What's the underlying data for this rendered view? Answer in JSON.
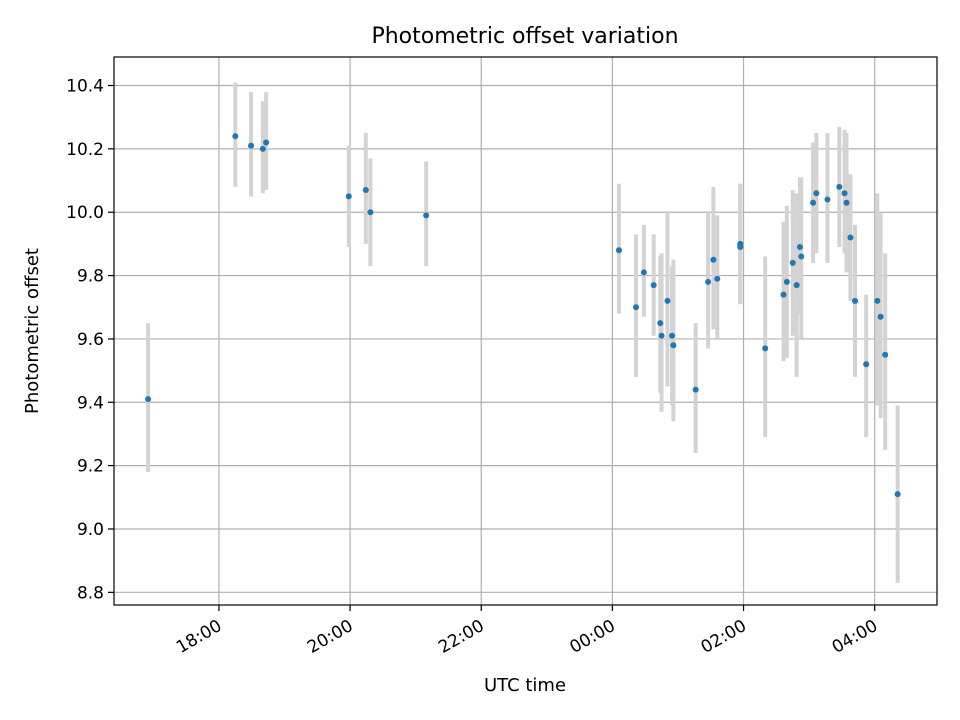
{
  "chart_data": {
    "type": "scatter",
    "title": "Photometric offset variation",
    "xlabel": "UTC time",
    "ylabel": "Photometric offset",
    "x_unit": "hours (UTC, relative to 00:00 of second day)",
    "xlim": [
      -7.6,
      4.95
    ],
    "ylim": [
      8.76,
      10.49
    ],
    "grid": true,
    "legend": "none",
    "colors": {
      "point": "#1f77b4",
      "errorbar": "#d3d3d3",
      "grid": "#b0b0b0"
    },
    "x_ticks": [
      {
        "value": -6,
        "label": "18:00"
      },
      {
        "value": -4,
        "label": "20:00"
      },
      {
        "value": -2,
        "label": "22:00"
      },
      {
        "value": 0,
        "label": "00:00"
      },
      {
        "value": 2,
        "label": "02:00"
      },
      {
        "value": 4,
        "label": "04:00"
      }
    ],
    "y_ticks": [
      {
        "value": 8.8,
        "label": "8.8"
      },
      {
        "value": 9.0,
        "label": "9.0"
      },
      {
        "value": 9.2,
        "label": "9.2"
      },
      {
        "value": 9.4,
        "label": "9.4"
      },
      {
        "value": 9.6,
        "label": "9.6"
      },
      {
        "value": 9.8,
        "label": "9.8"
      },
      {
        "value": 10.0,
        "label": "10.0"
      },
      {
        "value": 10.2,
        "label": "10.2"
      },
      {
        "value": 10.4,
        "label": "10.4"
      }
    ],
    "points": [
      {
        "x": -7.08,
        "y": 9.41,
        "lo": 9.18,
        "hi": 9.65
      },
      {
        "x": -5.75,
        "y": 10.24,
        "lo": 10.08,
        "hi": 10.41
      },
      {
        "x": -5.51,
        "y": 10.21,
        "lo": 10.05,
        "hi": 10.38
      },
      {
        "x": -5.33,
        "y": 10.2,
        "lo": 10.06,
        "hi": 10.35
      },
      {
        "x": -5.28,
        "y": 10.22,
        "lo": 10.07,
        "hi": 10.38
      },
      {
        "x": -4.02,
        "y": 10.05,
        "lo": 9.89,
        "hi": 10.21
      },
      {
        "x": -3.76,
        "y": 10.07,
        "lo": 9.9,
        "hi": 10.25
      },
      {
        "x": -3.69,
        "y": 10.0,
        "lo": 9.83,
        "hi": 10.17
      },
      {
        "x": -2.84,
        "y": 9.99,
        "lo": 9.83,
        "hi": 10.16
      },
      {
        "x": 0.1,
        "y": 9.88,
        "lo": 9.68,
        "hi": 10.09
      },
      {
        "x": 0.36,
        "y": 9.7,
        "lo": 9.48,
        "hi": 9.93
      },
      {
        "x": 0.48,
        "y": 9.81,
        "lo": 9.67,
        "hi": 9.96
      },
      {
        "x": 0.63,
        "y": 9.77,
        "lo": 9.61,
        "hi": 9.93
      },
      {
        "x": 0.73,
        "y": 9.65,
        "lo": 9.43,
        "hi": 9.86
      },
      {
        "x": 0.75,
        "y": 9.61,
        "lo": 9.37,
        "hi": 9.87
      },
      {
        "x": 0.84,
        "y": 9.72,
        "lo": 9.45,
        "hi": 10.0
      },
      {
        "x": 0.91,
        "y": 9.61,
        "lo": 9.39,
        "hi": 9.83
      },
      {
        "x": 0.93,
        "y": 9.58,
        "lo": 9.34,
        "hi": 9.85
      },
      {
        "x": 1.27,
        "y": 9.44,
        "lo": 9.24,
        "hi": 9.65
      },
      {
        "x": 1.46,
        "y": 9.78,
        "lo": 9.57,
        "hi": 10.0
      },
      {
        "x": 1.54,
        "y": 9.85,
        "lo": 9.63,
        "hi": 10.08
      },
      {
        "x": 1.6,
        "y": 9.79,
        "lo": 9.6,
        "hi": 9.99
      },
      {
        "x": 1.95,
        "y": 9.9,
        "lo": 9.71,
        "hi": 10.09
      },
      {
        "x": 1.95,
        "y": 9.89,
        "lo": 9.71,
        "hi": 10.07
      },
      {
        "x": 2.33,
        "y": 9.57,
        "lo": 9.29,
        "hi": 9.86
      },
      {
        "x": 2.61,
        "y": 9.74,
        "lo": 9.53,
        "hi": 9.97
      },
      {
        "x": 2.66,
        "y": 9.78,
        "lo": 9.54,
        "hi": 10.02
      },
      {
        "x": 2.75,
        "y": 9.84,
        "lo": 9.61,
        "hi": 10.07
      },
      {
        "x": 2.81,
        "y": 9.77,
        "lo": 9.48,
        "hi": 10.06
      },
      {
        "x": 2.86,
        "y": 9.89,
        "lo": 9.68,
        "hi": 10.11
      },
      {
        "x": 2.88,
        "y": 9.86,
        "lo": 9.6,
        "hi": 10.11
      },
      {
        "x": 3.06,
        "y": 10.03,
        "lo": 9.84,
        "hi": 10.22
      },
      {
        "x": 3.11,
        "y": 10.06,
        "lo": 9.87,
        "hi": 10.25
      },
      {
        "x": 3.28,
        "y": 10.04,
        "lo": 9.84,
        "hi": 10.25
      },
      {
        "x": 3.46,
        "y": 10.08,
        "lo": 9.89,
        "hi": 10.27
      },
      {
        "x": 3.54,
        "y": 10.06,
        "lo": 9.87,
        "hi": 10.26
      },
      {
        "x": 3.57,
        "y": 10.03,
        "lo": 9.81,
        "hi": 10.25
      },
      {
        "x": 3.63,
        "y": 9.92,
        "lo": 9.72,
        "hi": 10.12
      },
      {
        "x": 3.7,
        "y": 9.72,
        "lo": 9.48,
        "hi": 9.96
      },
      {
        "x": 3.87,
        "y": 9.52,
        "lo": 9.29,
        "hi": 9.74
      },
      {
        "x": 4.04,
        "y": 9.72,
        "lo": 9.39,
        "hi": 10.06
      },
      {
        "x": 4.09,
        "y": 9.67,
        "lo": 9.35,
        "hi": 10.0
      },
      {
        "x": 4.16,
        "y": 9.55,
        "lo": 9.25,
        "hi": 9.87
      },
      {
        "x": 4.35,
        "y": 9.11,
        "lo": 8.83,
        "hi": 9.39
      }
    ]
  }
}
